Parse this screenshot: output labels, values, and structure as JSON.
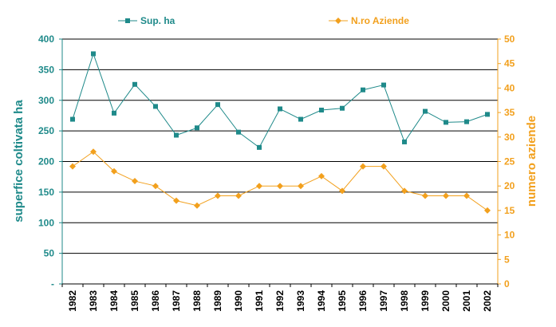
{
  "chart_data": {
    "type": "line",
    "categories": [
      "1982",
      "1983",
      "1984",
      "1985",
      "1986",
      "1987",
      "1988",
      "1989",
      "1990",
      "1991",
      "1992",
      "1993",
      "1994",
      "1995",
      "1996",
      "1997",
      "1998",
      "1999",
      "2000",
      "2001",
      "2002"
    ],
    "series": [
      {
        "name": "Sup. ha",
        "axis": "left",
        "color": "#1f8a8a",
        "marker": "square",
        "values": [
          269,
          376,
          279,
          326,
          290,
          243,
          255,
          293,
          248,
          223,
          286,
          269,
          284,
          287,
          317,
          325,
          232,
          282,
          264,
          265,
          277
        ]
      },
      {
        "name": "N.ro Aziende",
        "axis": "right",
        "color": "#f2a01d",
        "marker": "diamond",
        "values": [
          24,
          27,
          23,
          21,
          20,
          17,
          16,
          18,
          18,
          20,
          20,
          20,
          22,
          19,
          24,
          24,
          19,
          18,
          18,
          18,
          15
        ]
      }
    ],
    "ylabel_left": "superfice coltivata ha",
    "ylabel_right": "numero aziende",
    "ylim_left": [
      0,
      400
    ],
    "ylim_right": [
      0,
      50
    ],
    "yticks_left": [
      "-",
      "50",
      "100",
      "150",
      "200",
      "250",
      "300",
      "350",
      "400"
    ],
    "yticks_right": [
      "0",
      "5",
      "10",
      "15",
      "20",
      "25",
      "30",
      "35",
      "40",
      "45",
      "50"
    ],
    "grid": "horizontal",
    "legend": "top"
  }
}
